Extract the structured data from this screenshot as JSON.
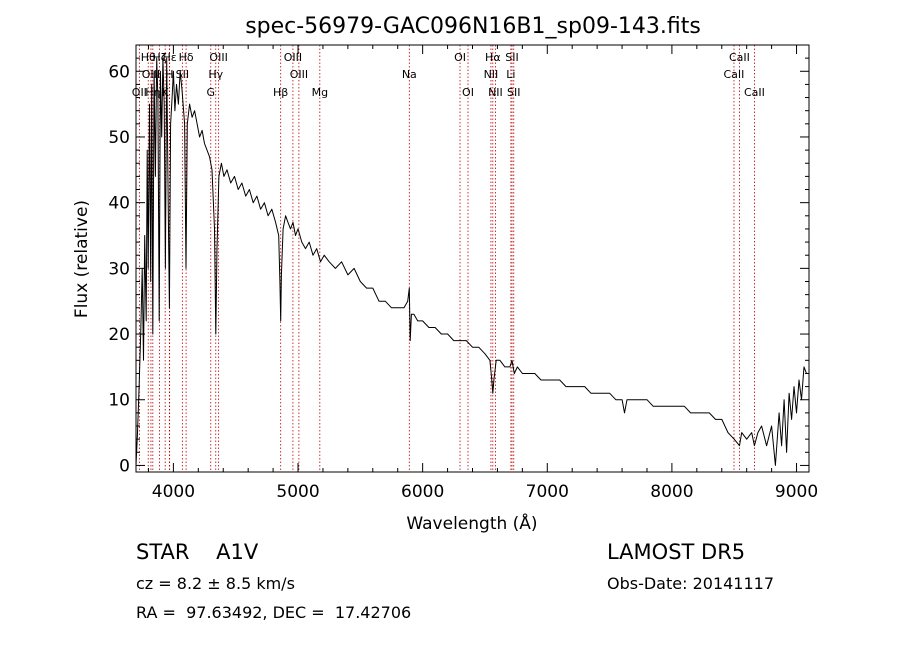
{
  "chart_data": {
    "type": "line",
    "title": "spec-56979-GAC096N16B1_sp09-143.fits",
    "xlabel": "Wavelength (Å)",
    "ylabel": "Flux (relative)",
    "xlim": [
      3700,
      9100
    ],
    "ylim": [
      -1,
      64
    ],
    "xticks": [
      {
        "value": 4000,
        "label": "4000"
      },
      {
        "value": 5000,
        "label": "5000"
      },
      {
        "value": 6000,
        "label": "6000"
      },
      {
        "value": 7000,
        "label": "7000"
      },
      {
        "value": 8000,
        "label": "8000"
      },
      {
        "value": 9000,
        "label": "9000"
      }
    ],
    "yticks": [
      {
        "value": 0,
        "label": "0"
      },
      {
        "value": 10,
        "label": "10"
      },
      {
        "value": 20,
        "label": "20"
      },
      {
        "value": 30,
        "label": "30"
      },
      {
        "value": 40,
        "label": "40"
      },
      {
        "value": 50,
        "label": "50"
      },
      {
        "value": 60,
        "label": "60"
      }
    ],
    "grid": false,
    "line_color": "#000000",
    "marker_color": "#c00000",
    "series": [
      {
        "values": [
          [
            3700,
            0
          ],
          [
            3712,
            5
          ],
          [
            3725,
            12
          ],
          [
            3738,
            20
          ],
          [
            3750,
            30
          ],
          [
            3760,
            16
          ],
          [
            3770,
            35
          ],
          [
            3782,
            22
          ],
          [
            3790,
            48
          ],
          [
            3798,
            30
          ],
          [
            3808,
            55
          ],
          [
            3818,
            28
          ],
          [
            3826,
            58
          ],
          [
            3835,
            20
          ],
          [
            3845,
            60
          ],
          [
            3856,
            44
          ],
          [
            3866,
            62
          ],
          [
            3876,
            56
          ],
          [
            3886,
            22
          ],
          [
            3896,
            60
          ],
          [
            3906,
            50
          ],
          [
            3916,
            62
          ],
          [
            3926,
            55
          ],
          [
            3936,
            30
          ],
          [
            3946,
            62
          ],
          [
            3958,
            40
          ],
          [
            3968,
            24
          ],
          [
            3978,
            52
          ],
          [
            3990,
            56
          ],
          [
            4000,
            60
          ],
          [
            4012,
            54
          ],
          [
            4025,
            58
          ],
          [
            4040,
            55
          ],
          [
            4055,
            60
          ],
          [
            4070,
            57
          ],
          [
            4090,
            52
          ],
          [
            4101,
            30
          ],
          [
            4112,
            52
          ],
          [
            4130,
            55
          ],
          [
            4150,
            53
          ],
          [
            4170,
            54
          ],
          [
            4190,
            52
          ],
          [
            4210,
            50
          ],
          [
            4230,
            51
          ],
          [
            4250,
            49
          ],
          [
            4270,
            48
          ],
          [
            4290,
            47
          ],
          [
            4310,
            45
          ],
          [
            4330,
            36
          ],
          [
            4340,
            20
          ],
          [
            4350,
            33
          ],
          [
            4365,
            44
          ],
          [
            4385,
            46
          ],
          [
            4405,
            44
          ],
          [
            4430,
            45
          ],
          [
            4460,
            43
          ],
          [
            4490,
            44
          ],
          [
            4520,
            42
          ],
          [
            4550,
            43
          ],
          [
            4580,
            41
          ],
          [
            4610,
            42
          ],
          [
            4640,
            40
          ],
          [
            4670,
            41
          ],
          [
            4700,
            39
          ],
          [
            4730,
            40
          ],
          [
            4760,
            38
          ],
          [
            4790,
            39
          ],
          [
            4820,
            37
          ],
          [
            4845,
            35
          ],
          [
            4855,
            28
          ],
          [
            4861,
            22
          ],
          [
            4867,
            29
          ],
          [
            4880,
            36
          ],
          [
            4900,
            38
          ],
          [
            4920,
            37
          ],
          [
            4940,
            36
          ],
          [
            4960,
            37
          ],
          [
            4980,
            35
          ],
          [
            5000,
            36
          ],
          [
            5030,
            34
          ],
          [
            5060,
            33
          ],
          [
            5090,
            34
          ],
          [
            5120,
            32
          ],
          [
            5150,
            33
          ],
          [
            5180,
            31
          ],
          [
            5210,
            32
          ],
          [
            5250,
            31
          ],
          [
            5300,
            30
          ],
          [
            5350,
            31
          ],
          [
            5400,
            29
          ],
          [
            5450,
            30
          ],
          [
            5500,
            28
          ],
          [
            5550,
            27
          ],
          [
            5600,
            27
          ],
          [
            5650,
            25
          ],
          [
            5700,
            25
          ],
          [
            5750,
            24
          ],
          [
            5800,
            24
          ],
          [
            5850,
            24
          ],
          [
            5880,
            25
          ],
          [
            5893,
            27
          ],
          [
            5900,
            19
          ],
          [
            5910,
            23
          ],
          [
            5930,
            23
          ],
          [
            5960,
            22
          ],
          [
            6000,
            22
          ],
          [
            6050,
            21
          ],
          [
            6100,
            21
          ],
          [
            6150,
            20
          ],
          [
            6200,
            20
          ],
          [
            6250,
            19
          ],
          [
            6300,
            19
          ],
          [
            6350,
            19
          ],
          [
            6400,
            18
          ],
          [
            6450,
            18
          ],
          [
            6500,
            17
          ],
          [
            6540,
            16
          ],
          [
            6555,
            13
          ],
          [
            6563,
            11
          ],
          [
            6572,
            13
          ],
          [
            6590,
            16
          ],
          [
            6620,
            16
          ],
          [
            6660,
            15
          ],
          [
            6700,
            15
          ],
          [
            6717,
            16
          ],
          [
            6735,
            14
          ],
          [
            6760,
            15
          ],
          [
            6800,
            14
          ],
          [
            6850,
            14
          ],
          [
            6900,
            14
          ],
          [
            6950,
            13
          ],
          [
            7000,
            13
          ],
          [
            7050,
            13
          ],
          [
            7100,
            13
          ],
          [
            7150,
            12
          ],
          [
            7200,
            12
          ],
          [
            7250,
            12
          ],
          [
            7300,
            12
          ],
          [
            7350,
            11
          ],
          [
            7400,
            11
          ],
          [
            7450,
            11
          ],
          [
            7500,
            11
          ],
          [
            7550,
            10
          ],
          [
            7600,
            10
          ],
          [
            7620,
            8
          ],
          [
            7640,
            10
          ],
          [
            7700,
            10
          ],
          [
            7750,
            10
          ],
          [
            7800,
            10
          ],
          [
            7850,
            9
          ],
          [
            7900,
            9
          ],
          [
            7950,
            9
          ],
          [
            8000,
            9
          ],
          [
            8050,
            9
          ],
          [
            8100,
            9
          ],
          [
            8150,
            8
          ],
          [
            8200,
            8
          ],
          [
            8250,
            8
          ],
          [
            8300,
            8
          ],
          [
            8350,
            7
          ],
          [
            8400,
            7
          ],
          [
            8450,
            5
          ],
          [
            8500,
            4
          ],
          [
            8542,
            3
          ],
          [
            8560,
            5
          ],
          [
            8600,
            4
          ],
          [
            8640,
            5
          ],
          [
            8662,
            3
          ],
          [
            8690,
            5
          ],
          [
            8720,
            6
          ],
          [
            8760,
            3
          ],
          [
            8800,
            6
          ],
          [
            8830,
            0
          ],
          [
            8860,
            8
          ],
          [
            8880,
            3
          ],
          [
            8900,
            10
          ],
          [
            8920,
            2
          ],
          [
            8940,
            11
          ],
          [
            8960,
            7
          ],
          [
            8980,
            12
          ],
          [
            9000,
            8
          ],
          [
            9020,
            13
          ],
          [
            9040,
            10
          ],
          [
            9060,
            15
          ],
          [
            9080,
            14
          ]
        ]
      }
    ],
    "lines": [
      {
        "wave": 3727,
        "label": "OII",
        "row": 3
      },
      {
        "wave": 3798,
        "label": "Hθ",
        "row": 1
      },
      {
        "wave": 3820,
        "label": "OIII",
        "row": 2
      },
      {
        "wave": 3835,
        "label": "Hη",
        "row": 3
      },
      {
        "wave": 3889,
        "label": "Hζ",
        "row": 1
      },
      {
        "wave": 3934,
        "label": "K",
        "row": 3
      },
      {
        "wave": 3968,
        "label": "H",
        "row": 2
      },
      {
        "wave": 3970,
        "label": "Hε",
        "row": 1
      },
      {
        "wave": 4072,
        "label": "SII",
        "row": 2
      },
      {
        "wave": 4102,
        "label": "Hδ",
        "row": 1
      },
      {
        "wave": 4300,
        "label": "G",
        "row": 3
      },
      {
        "wave": 4340,
        "label": "Hγ",
        "row": 2
      },
      {
        "wave": 4363,
        "label": "OIII",
        "row": 1
      },
      {
        "wave": 4861,
        "label": "Hβ",
        "row": 3
      },
      {
        "wave": 4959,
        "label": "OIII",
        "row": 1
      },
      {
        "wave": 5007,
        "label": "OIII",
        "row": 2
      },
      {
        "wave": 5175,
        "label": "Mg",
        "row": 3
      },
      {
        "wave": 5893,
        "label": "Na",
        "row": 2
      },
      {
        "wave": 6300,
        "label": "OI",
        "row": 1
      },
      {
        "wave": 6364,
        "label": "OI",
        "row": 3
      },
      {
        "wave": 6548,
        "label": "NII",
        "row": 2
      },
      {
        "wave": 6563,
        "label": "Hα",
        "row": 1
      },
      {
        "wave": 6584,
        "label": "NII",
        "row": 3
      },
      {
        "wave": 6708,
        "label": "Li",
        "row": 2
      },
      {
        "wave": 6717,
        "label": "SII",
        "row": 1
      },
      {
        "wave": 6731,
        "label": "SII",
        "row": 3
      },
      {
        "wave": 8498,
        "label": "CaII",
        "row": 2
      },
      {
        "wave": 8542,
        "label": "CaII",
        "row": 1
      },
      {
        "wave": 8662,
        "label": "CaII",
        "row": 3
      }
    ]
  },
  "footer": {
    "class_label": "STAR    A1V",
    "survey": "LAMOST DR5",
    "cz": "cz = 8.2 ± 8.5 km/s",
    "obs_date": "Obs-Date: 20141117",
    "coords": "RA =  97.63492, DEC =  17.42706"
  }
}
